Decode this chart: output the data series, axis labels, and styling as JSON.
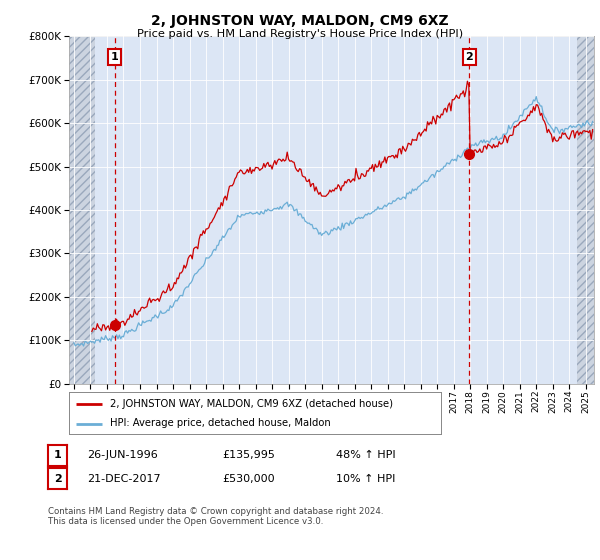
{
  "title": "2, JOHNSTON WAY, MALDON, CM9 6XZ",
  "subtitle": "Price paid vs. HM Land Registry's House Price Index (HPI)",
  "sale1_price": 135995,
  "sale1_t": 1996.458,
  "sale2_price": 530000,
  "sale2_t": 2017.958,
  "legend_line1": "2, JOHNSTON WAY, MALDON, CM9 6XZ (detached house)",
  "legend_line2": "HPI: Average price, detached house, Maldon",
  "footnote": "Contains HM Land Registry data © Crown copyright and database right 2024.\nThis data is licensed under the Open Government Licence v3.0.",
  "table_row1": [
    "1",
    "26-JUN-1996",
    "£135,995",
    "48% ↑ HPI"
  ],
  "table_row2": [
    "2",
    "21-DEC-2017",
    "£530,000",
    "10% ↑ HPI"
  ],
  "hpi_color": "#6baed6",
  "price_color": "#cc0000",
  "bg_color": "#dce6f5",
  "hatch_bg": "#ccd4e0",
  "grid_color": "#ffffff",
  "ylim": [
    0,
    800000
  ],
  "xlim_min": 1993.7,
  "xlim_max": 2025.5,
  "hatch_right_start": 2024.5,
  "hatch_left_end": 1995.3
}
